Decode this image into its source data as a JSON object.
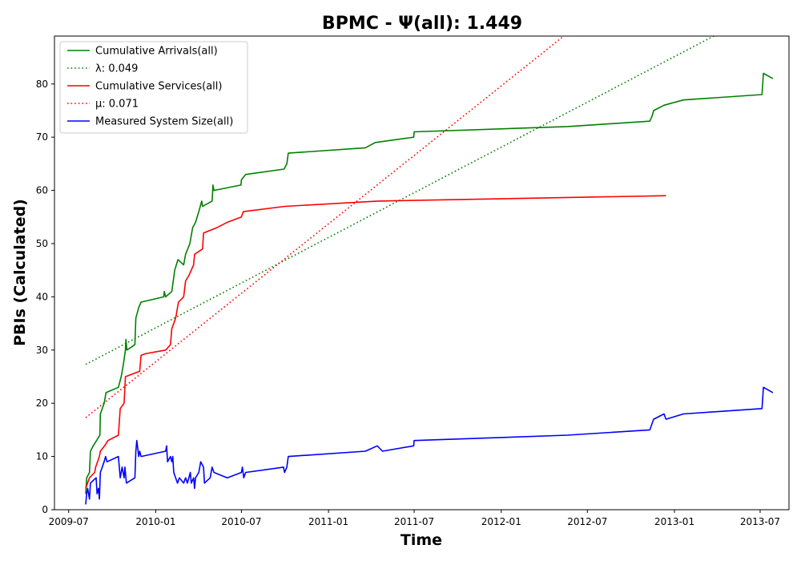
{
  "chart_data": {
    "type": "line",
    "title": "BPMC -  Ψ(all): 1.449",
    "xlabel": "Time",
    "ylabel": "PBIs (Calculated)",
    "xlim": [
      "2009-06-01",
      "2013-08-31"
    ],
    "ylim": [
      0,
      89
    ],
    "x_ticks": [
      "2009-07",
      "2010-01",
      "2010-07",
      "2011-01",
      "2011-07",
      "2012-01",
      "2012-07",
      "2013-01",
      "2013-07"
    ],
    "y_ticks": [
      0,
      10,
      20,
      30,
      40,
      50,
      60,
      70,
      80
    ],
    "grid": false,
    "legend_position": "top-left",
    "series": [
      {
        "name": "Cumulative Arrivals(all)",
        "color": "#008000",
        "style": "solid",
        "points": [
          [
            "2009-08-06",
            3
          ],
          [
            "2009-08-08",
            6
          ],
          [
            "2009-08-14",
            7
          ],
          [
            "2009-08-16",
            11
          ],
          [
            "2009-08-22",
            12
          ],
          [
            "2009-09-05",
            14
          ],
          [
            "2009-09-06",
            18
          ],
          [
            "2009-09-14",
            20
          ],
          [
            "2009-09-18",
            22
          ],
          [
            "2009-10-14",
            23
          ],
          [
            "2009-10-20",
            25
          ],
          [
            "2009-10-24",
            27
          ],
          [
            "2009-10-29",
            30
          ],
          [
            "2009-10-30",
            32
          ],
          [
            "2009-11-01",
            30
          ],
          [
            "2009-11-18",
            31
          ],
          [
            "2009-11-20",
            36
          ],
          [
            "2009-11-26",
            38
          ],
          [
            "2009-12-01",
            39
          ],
          [
            "2010-01-18",
            40
          ],
          [
            "2010-01-19",
            41
          ],
          [
            "2010-01-22",
            40
          ],
          [
            "2010-02-04",
            41
          ],
          [
            "2010-02-10",
            45
          ],
          [
            "2010-02-17",
            47
          ],
          [
            "2010-03-01",
            46
          ],
          [
            "2010-03-05",
            48
          ],
          [
            "2010-03-14",
            50
          ],
          [
            "2010-03-20",
            53
          ],
          [
            "2010-03-26",
            54
          ],
          [
            "2010-04-02",
            56
          ],
          [
            "2010-04-08",
            58
          ],
          [
            "2010-04-10",
            57
          ],
          [
            "2010-04-30",
            58
          ],
          [
            "2010-05-02",
            61
          ],
          [
            "2010-05-04",
            60
          ],
          [
            "2010-06-30",
            61
          ],
          [
            "2010-07-01",
            62
          ],
          [
            "2010-07-10",
            63
          ],
          [
            "2010-09-29",
            64
          ],
          [
            "2010-10-05",
            65
          ],
          [
            "2010-10-08",
            67
          ],
          [
            "2011-03-20",
            68
          ],
          [
            "2011-04-10",
            69
          ],
          [
            "2011-06-30",
            70
          ],
          [
            "2011-07-01",
            71
          ],
          [
            "2012-05-20",
            72
          ],
          [
            "2012-11-10",
            73
          ],
          [
            "2012-11-15",
            74
          ],
          [
            "2012-11-18",
            75
          ],
          [
            "2012-12-10",
            76
          ],
          [
            "2013-01-20",
            77
          ],
          [
            "2013-07-05",
            78
          ],
          [
            "2013-07-08",
            82
          ],
          [
            "2013-07-28",
            81
          ]
        ]
      },
      {
        "name": "λ: 0.049",
        "color": "#008000",
        "style": "dotted",
        "points": [
          [
            "2009-08-06",
            27.3
          ],
          [
            "2013-03-25",
            89
          ]
        ]
      },
      {
        "name": "Cumulative Services(all)",
        "color": "#ff0000",
        "style": "solid",
        "points": [
          [
            "2009-08-06",
            4
          ],
          [
            "2009-08-14",
            6
          ],
          [
            "2009-08-25",
            7
          ],
          [
            "2009-08-27",
            8
          ],
          [
            "2009-09-04",
            10
          ],
          [
            "2009-09-06",
            11
          ],
          [
            "2009-09-15",
            12
          ],
          [
            "2009-09-22",
            13
          ],
          [
            "2009-10-14",
            14
          ],
          [
            "2009-10-18",
            19
          ],
          [
            "2009-10-26",
            20
          ],
          [
            "2009-10-29",
            25
          ],
          [
            "2009-11-28",
            26
          ],
          [
            "2009-12-01",
            29
          ],
          [
            "2009-12-10",
            29.3
          ],
          [
            "2010-01-22",
            30
          ],
          [
            "2010-02-01",
            31
          ],
          [
            "2010-02-04",
            34
          ],
          [
            "2010-02-12",
            36
          ],
          [
            "2010-02-18",
            39
          ],
          [
            "2010-03-01",
            40
          ],
          [
            "2010-03-05",
            43
          ],
          [
            "2010-03-12",
            44
          ],
          [
            "2010-03-22",
            46
          ],
          [
            "2010-03-24",
            48
          ],
          [
            "2010-04-10",
            49
          ],
          [
            "2010-04-12",
            52
          ],
          [
            "2010-05-10",
            53
          ],
          [
            "2010-06-01",
            54
          ],
          [
            "2010-07-01",
            55
          ],
          [
            "2010-07-05",
            56
          ],
          [
            "2010-10-01",
            57
          ],
          [
            "2011-04-15",
            58
          ],
          [
            "2012-12-14",
            59
          ]
        ]
      },
      {
        "name": "μ: 0.071",
        "color": "#ff0000",
        "style": "dotted",
        "points": [
          [
            "2009-08-06",
            17.3
          ],
          [
            "2012-05-12",
            89
          ]
        ]
      },
      {
        "name": "Measured System Size(all)",
        "color": "#0000ff",
        "style": "solid",
        "points": [
          [
            "2009-08-06",
            1
          ],
          [
            "2009-08-08",
            3
          ],
          [
            "2009-08-10",
            4
          ],
          [
            "2009-08-14",
            2
          ],
          [
            "2009-08-16",
            5
          ],
          [
            "2009-08-28",
            6
          ],
          [
            "2009-08-30",
            3
          ],
          [
            "2009-09-02",
            4
          ],
          [
            "2009-09-04",
            2
          ],
          [
            "2009-09-06",
            7
          ],
          [
            "2009-09-14",
            9
          ],
          [
            "2009-09-17",
            10
          ],
          [
            "2009-09-20",
            9
          ],
          [
            "2009-10-14",
            10
          ],
          [
            "2009-10-18",
            6
          ],
          [
            "2009-10-22",
            8
          ],
          [
            "2009-10-26",
            6
          ],
          [
            "2009-10-28",
            8
          ],
          [
            "2009-10-31",
            5
          ],
          [
            "2009-11-18",
            6
          ],
          [
            "2009-11-20",
            11
          ],
          [
            "2009-11-22",
            13
          ],
          [
            "2009-11-26",
            10
          ],
          [
            "2009-11-28",
            11
          ],
          [
            "2009-12-01",
            10
          ],
          [
            "2010-01-22",
            11
          ],
          [
            "2010-01-24",
            12
          ],
          [
            "2010-01-26",
            9
          ],
          [
            "2010-02-01",
            10
          ],
          [
            "2010-02-04",
            9
          ],
          [
            "2010-02-06",
            10
          ],
          [
            "2010-02-08",
            7
          ],
          [
            "2010-02-16",
            5
          ],
          [
            "2010-02-20",
            6
          ],
          [
            "2010-03-01",
            5
          ],
          [
            "2010-03-05",
            6
          ],
          [
            "2010-03-09",
            5
          ],
          [
            "2010-03-15",
            7
          ],
          [
            "2010-03-17",
            5
          ],
          [
            "2010-03-22",
            6
          ],
          [
            "2010-03-24",
            4
          ],
          [
            "2010-03-26",
            6
          ],
          [
            "2010-04-02",
            7
          ],
          [
            "2010-04-06",
            9
          ],
          [
            "2010-04-12",
            8
          ],
          [
            "2010-04-14",
            5
          ],
          [
            "2010-04-26",
            6
          ],
          [
            "2010-04-30",
            8
          ],
          [
            "2010-05-04",
            7
          ],
          [
            "2010-06-01",
            6
          ],
          [
            "2010-07-01",
            7
          ],
          [
            "2010-07-03",
            8
          ],
          [
            "2010-07-06",
            6
          ],
          [
            "2010-07-10",
            7
          ],
          [
            "2010-09-28",
            8
          ],
          [
            "2010-09-30",
            7
          ],
          [
            "2010-10-05",
            8
          ],
          [
            "2010-10-08",
            10
          ],
          [
            "2011-03-20",
            11
          ],
          [
            "2011-04-14",
            12
          ],
          [
            "2011-04-25",
            11
          ],
          [
            "2011-06-30",
            12
          ],
          [
            "2011-07-01",
            13
          ],
          [
            "2012-05-20",
            14
          ],
          [
            "2012-11-10",
            15
          ],
          [
            "2012-11-18",
            17
          ],
          [
            "2012-12-10",
            18
          ],
          [
            "2012-12-14",
            17
          ],
          [
            "2013-01-20",
            18
          ],
          [
            "2013-07-05",
            19
          ],
          [
            "2013-07-08",
            23
          ],
          [
            "2013-07-28",
            22
          ]
        ]
      }
    ]
  }
}
